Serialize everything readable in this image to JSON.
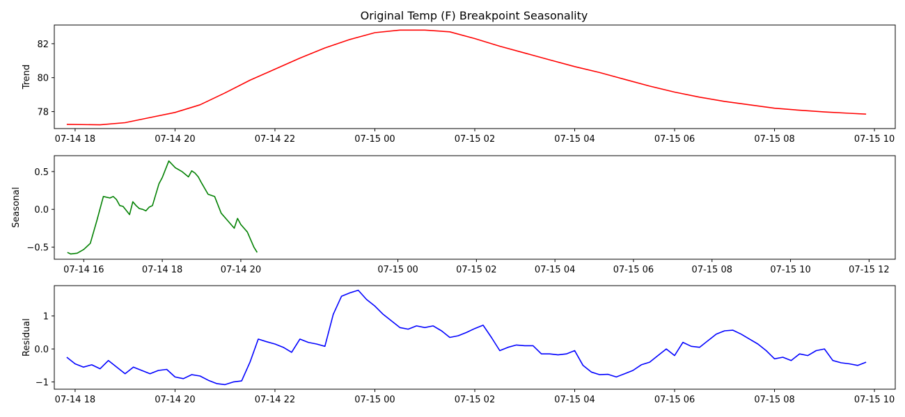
{
  "figure": {
    "title": "Original Temp (F) Breakpoint Seasonality"
  },
  "chart_data": [
    {
      "type": "line",
      "name": "trend",
      "ylabel": "Trend",
      "color": "#ff0000",
      "xlim": [
        "07-14 17:35",
        "07-15 10:25"
      ],
      "ylim": [
        77,
        83.1
      ],
      "xticks": [
        "07-14 18",
        "07-14 20",
        "07-14 22",
        "07-15 00",
        "07-15 02",
        "07-15 04",
        "07-15 06",
        "07-15 08",
        "07-15 10"
      ],
      "yticks": [
        78,
        80,
        82
      ],
      "x": [
        "07-14 17:50",
        "07-14 18:30",
        "07-14 19:00",
        "07-14 19:30",
        "07-14 20:00",
        "07-14 20:30",
        "07-14 21:00",
        "07-14 21:30",
        "07-14 22:00",
        "07-14 22:30",
        "07-14 23:00",
        "07-14 23:30",
        "07-15 00:00",
        "07-15 00:30",
        "07-15 01:00",
        "07-15 01:30",
        "07-15 02:00",
        "07-15 02:30",
        "07-15 03:00",
        "07-15 03:30",
        "07-15 04:00",
        "07-15 04:30",
        "07-15 05:00",
        "07-15 05:30",
        "07-15 06:00",
        "07-15 06:30",
        "07-15 07:00",
        "07-15 07:30",
        "07-15 08:00",
        "07-15 08:30",
        "07-15 09:00",
        "07-15 09:30",
        "07-15 09:50"
      ],
      "values": [
        77.25,
        77.22,
        77.35,
        77.65,
        77.95,
        78.4,
        79.1,
        79.85,
        80.5,
        81.15,
        81.75,
        82.25,
        82.65,
        82.8,
        82.8,
        82.7,
        82.3,
        81.85,
        81.45,
        81.05,
        80.65,
        80.3,
        79.9,
        79.5,
        79.15,
        78.85,
        78.6,
        78.4,
        78.2,
        78.08,
        77.98,
        77.9,
        77.85
      ]
    },
    {
      "type": "line",
      "name": "seasonal",
      "ylabel": "Seasonal",
      "color": "#008000",
      "xlim": [
        "07-14 15:15",
        "07-15 12:40"
      ],
      "ylim": [
        -0.66,
        0.71
      ],
      "xticks": [
        "07-14 16",
        "07-14 18",
        "07-14 20",
        "07-15 00",
        "07-15 02",
        "07-15 04",
        "07-15 06",
        "07-15 08",
        "07-15 10",
        "07-15 12"
      ],
      "xticks_note": "",
      "yticks": [
        -0.5,
        0.0,
        0.5
      ],
      "period_hours": 4,
      "x": [
        "07-14 15:35",
        "07-14 15:40",
        "07-14 15:50",
        "07-14 16:00",
        "07-14 16:10",
        "07-14 16:20",
        "07-14 16:30",
        "07-14 16:40",
        "07-14 16:45",
        "07-14 16:50",
        "07-14 16:55",
        "07-14 17:00",
        "07-14 17:10",
        "07-14 17:15",
        "07-14 17:20",
        "07-14 17:25",
        "07-14 17:30",
        "07-14 17:35",
        "07-14 17:40",
        "07-14 17:45",
        "07-14 17:55",
        "07-14 18:00",
        "07-14 18:10",
        "07-14 18:20",
        "07-14 18:30",
        "07-14 18:40",
        "07-14 18:45",
        "07-14 18:50",
        "07-14 18:55",
        "07-14 19:00",
        "07-14 19:10",
        "07-14 19:20",
        "07-14 19:30",
        "07-14 19:40",
        "07-14 19:50",
        "07-14 19:55",
        "07-14 20:00",
        "07-14 20:10",
        "07-14 20:20",
        "07-14 20:25"
      ],
      "values": [
        -0.57,
        -0.59,
        -0.58,
        -0.53,
        -0.45,
        -0.15,
        0.17,
        0.15,
        0.17,
        0.13,
        0.05,
        0.04,
        -0.07,
        0.1,
        0.05,
        0.01,
        0.0,
        -0.02,
        0.03,
        0.05,
        0.34,
        0.42,
        0.64,
        0.55,
        0.5,
        0.43,
        0.51,
        0.48,
        0.43,
        0.35,
        0.2,
        0.17,
        -0.05,
        -0.15,
        -0.25,
        -0.12,
        -0.2,
        -0.3,
        -0.5,
        -0.57
      ]
    },
    {
      "type": "line",
      "name": "residual",
      "ylabel": "Residual",
      "color": "#0000ff",
      "xlim": [
        "07-14 17:35",
        "07-15 10:25"
      ],
      "ylim": [
        -1.22,
        1.92
      ],
      "xticks": [
        "07-14 18",
        "07-14 20",
        "07-14 22",
        "07-15 00",
        "07-15 02",
        "07-15 04",
        "07-15 06",
        "07-15 08",
        "07-15 10"
      ],
      "yticks": [
        -1,
        0,
        1
      ],
      "x": [
        "07-14 17:50",
        "07-14 18:00",
        "07-14 18:10",
        "07-14 18:20",
        "07-14 18:30",
        "07-14 18:40",
        "07-14 18:50",
        "07-14 19:00",
        "07-14 19:10",
        "07-14 19:20",
        "07-14 19:30",
        "07-14 19:40",
        "07-14 19:50",
        "07-14 20:00",
        "07-14 20:10",
        "07-14 20:20",
        "07-14 20:30",
        "07-14 20:40",
        "07-14 20:50",
        "07-14 21:00",
        "07-14 21:10",
        "07-14 21:20",
        "07-14 21:30",
        "07-14 21:40",
        "07-14 21:50",
        "07-14 22:00",
        "07-14 22:10",
        "07-14 22:20",
        "07-14 22:30",
        "07-14 22:40",
        "07-14 22:50",
        "07-14 23:00",
        "07-14 23:10",
        "07-14 23:20",
        "07-14 23:30",
        "07-14 23:40",
        "07-14 23:50",
        "07-15 00:00",
        "07-15 00:10",
        "07-15 00:20",
        "07-15 00:30",
        "07-15 00:40",
        "07-15 00:50",
        "07-15 01:00",
        "07-15 01:10",
        "07-15 01:20",
        "07-15 01:30",
        "07-15 01:40",
        "07-15 01:50",
        "07-15 02:00",
        "07-15 02:10",
        "07-15 02:20",
        "07-15 02:30",
        "07-15 02:40",
        "07-15 02:50",
        "07-15 03:00",
        "07-15 03:10",
        "07-15 03:20",
        "07-15 03:30",
        "07-15 03:40",
        "07-15 03:50",
        "07-15 04:00",
        "07-15 04:10",
        "07-15 04:20",
        "07-15 04:30",
        "07-15 04:40",
        "07-15 04:50",
        "07-15 05:00",
        "07-15 05:10",
        "07-15 05:20",
        "07-15 05:30",
        "07-15 05:40",
        "07-15 05:50",
        "07-15 06:00",
        "07-15 06:10",
        "07-15 06:20",
        "07-15 06:30",
        "07-15 06:40",
        "07-15 06:50",
        "07-15 07:00",
        "07-15 07:10",
        "07-15 07:20",
        "07-15 07:30",
        "07-15 07:40",
        "07-15 07:50",
        "07-15 08:00",
        "07-15 08:10",
        "07-15 08:20",
        "07-15 08:30",
        "07-15 08:40",
        "07-15 08:50",
        "07-15 09:00",
        "07-15 09:10",
        "07-15 09:20",
        "07-15 09:30",
        "07-15 09:40",
        "07-15 09:50"
      ],
      "values": [
        -0.25,
        -0.45,
        -0.55,
        -0.48,
        -0.6,
        -0.35,
        -0.55,
        -0.75,
        -0.55,
        -0.65,
        -0.75,
        -0.65,
        -0.62,
        -0.85,
        -0.9,
        -0.78,
        -0.82,
        -0.95,
        -1.05,
        -1.08,
        -1.0,
        -0.97,
        -0.4,
        0.3,
        0.22,
        0.15,
        0.05,
        -0.1,
        0.3,
        0.2,
        0.15,
        0.08,
        1.05,
        1.6,
        1.7,
        1.78,
        1.5,
        1.3,
        1.05,
        0.85,
        0.65,
        0.6,
        0.7,
        0.65,
        0.7,
        0.55,
        0.35,
        0.4,
        0.5,
        0.62,
        0.72,
        0.35,
        -0.05,
        0.05,
        0.12,
        0.1,
        0.1,
        -0.15,
        -0.15,
        -0.18,
        -0.15,
        -0.05,
        -0.5,
        -0.7,
        -0.78,
        -0.77,
        -0.85,
        -0.75,
        -0.65,
        -0.48,
        -0.4,
        -0.2,
        0.0,
        -0.2,
        0.2,
        0.08,
        0.05,
        0.25,
        0.45,
        0.55,
        0.57,
        0.45,
        0.3,
        0.15,
        -0.05,
        -0.3,
        -0.25,
        -0.35,
        -0.15,
        -0.2,
        -0.05,
        0.0,
        -0.35,
        -0.42,
        -0.45,
        -0.5,
        -0.4
      ]
    }
  ]
}
